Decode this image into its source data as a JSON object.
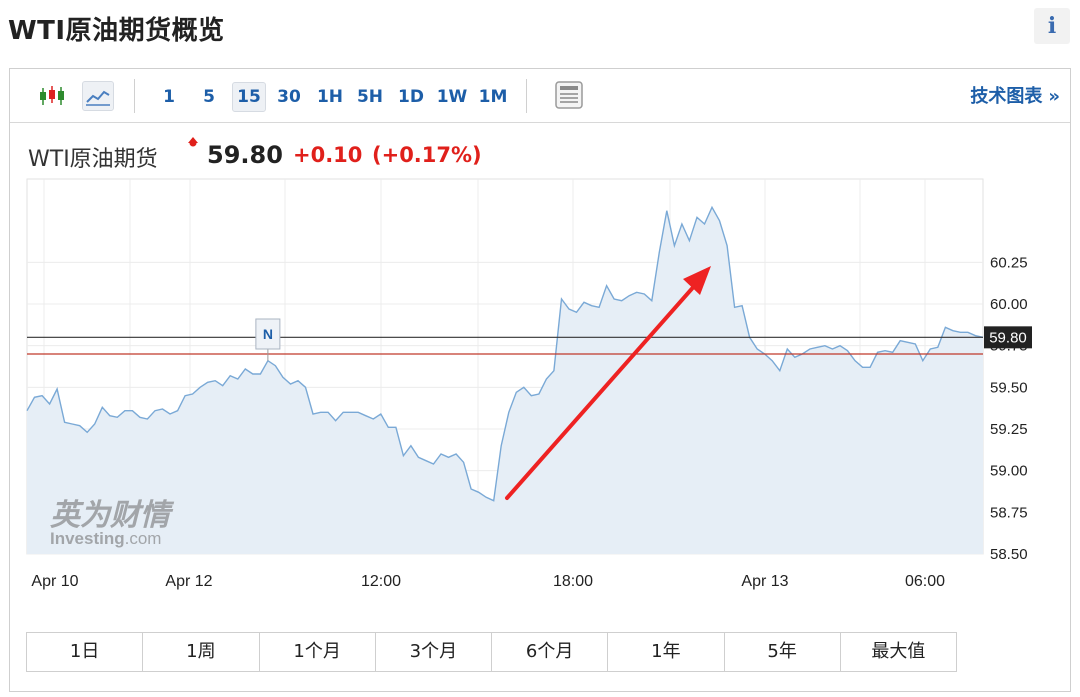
{
  "page": {
    "title": "WTI原油期货概览",
    "info_icon": "info-icon",
    "info_glyph": "i"
  },
  "toolbar": {
    "chart_type_icons": [
      "candlestick-icon",
      "line-chart-icon"
    ],
    "intervals": [
      "1",
      "5",
      "15",
      "30",
      "1H",
      "5H",
      "1D",
      "1W",
      "1M"
    ],
    "active_interval": "15",
    "table_icon": "table-icon",
    "tech_chart_label": "技术图表",
    "tech_chart_chevron": "»"
  },
  "quote": {
    "name": "WTI原油期货",
    "price": "59.80",
    "change": "+0.10",
    "change_pct": "(+0.17%)",
    "up_color": "#e0201b"
  },
  "watermark": {
    "text_cn": "英为财情",
    "text_en": "Investing",
    "text_suffix": ".com"
  },
  "chart_data": {
    "type": "area",
    "title": "",
    "xlabel": "",
    "ylabel": "",
    "x_tick_labels": [
      "Apr 10",
      "Apr 12",
      "12:00",
      "18:00",
      "Apr 13",
      "06:00"
    ],
    "y_tick_labels": [
      "60.25",
      "60.00",
      "59.75",
      "59.50",
      "59.25",
      "59.00",
      "58.75",
      "58.50"
    ],
    "ylim": [
      58.5,
      60.75
    ],
    "grid": true,
    "last_price_label": "59.80",
    "reference_level": 59.7,
    "reference_color": "#c0392b",
    "last_line_color": "#333333",
    "marker": {
      "label": "N",
      "index": 32
    },
    "line_color": "#7aa9d6",
    "fill_color": "#e6eef6",
    "values": [
      59.36,
      59.44,
      59.45,
      59.4,
      59.49,
      59.29,
      59.28,
      59.27,
      59.23,
      59.28,
      59.38,
      59.33,
      59.32,
      59.36,
      59.36,
      59.32,
      59.31,
      59.36,
      59.37,
      59.34,
      59.36,
      59.45,
      59.46,
      59.5,
      59.53,
      59.54,
      59.51,
      59.57,
      59.55,
      59.61,
      59.58,
      59.58,
      59.66,
      59.63,
      59.56,
      59.52,
      59.54,
      59.5,
      59.34,
      59.35,
      59.35,
      59.3,
      59.35,
      59.35,
      59.35,
      59.33,
      59.31,
      59.34,
      59.26,
      59.26,
      59.09,
      59.15,
      59.08,
      59.06,
      59.04,
      59.1,
      59.08,
      59.1,
      59.05,
      58.89,
      58.87,
      58.84,
      58.82,
      59.15,
      59.35,
      59.47,
      59.5,
      59.45,
      59.46,
      59.55,
      59.6,
      60.03,
      59.97,
      59.95,
      60.01,
      59.99,
      59.98,
      60.11,
      60.03,
      60.02,
      60.05,
      60.07,
      60.06,
      60.02,
      60.31,
      60.56,
      60.35,
      60.48,
      60.38,
      60.52,
      60.48,
      60.58,
      60.5,
      60.35,
      59.98,
      59.99,
      59.8,
      59.73,
      59.7,
      59.66,
      59.6,
      59.73,
      59.68,
      59.7,
      59.73,
      59.74,
      59.75,
      59.73,
      59.75,
      59.72,
      59.66,
      59.62,
      59.62,
      59.71,
      59.72,
      59.71,
      59.78,
      59.77,
      59.76,
      59.66,
      59.73,
      59.74,
      59.86,
      59.84,
      59.83,
      59.83,
      59.81,
      59.8
    ]
  },
  "ranges": [
    "1日",
    "1周",
    "1个月",
    "3个月",
    "6个月",
    "1年",
    "5年",
    "最大值"
  ]
}
